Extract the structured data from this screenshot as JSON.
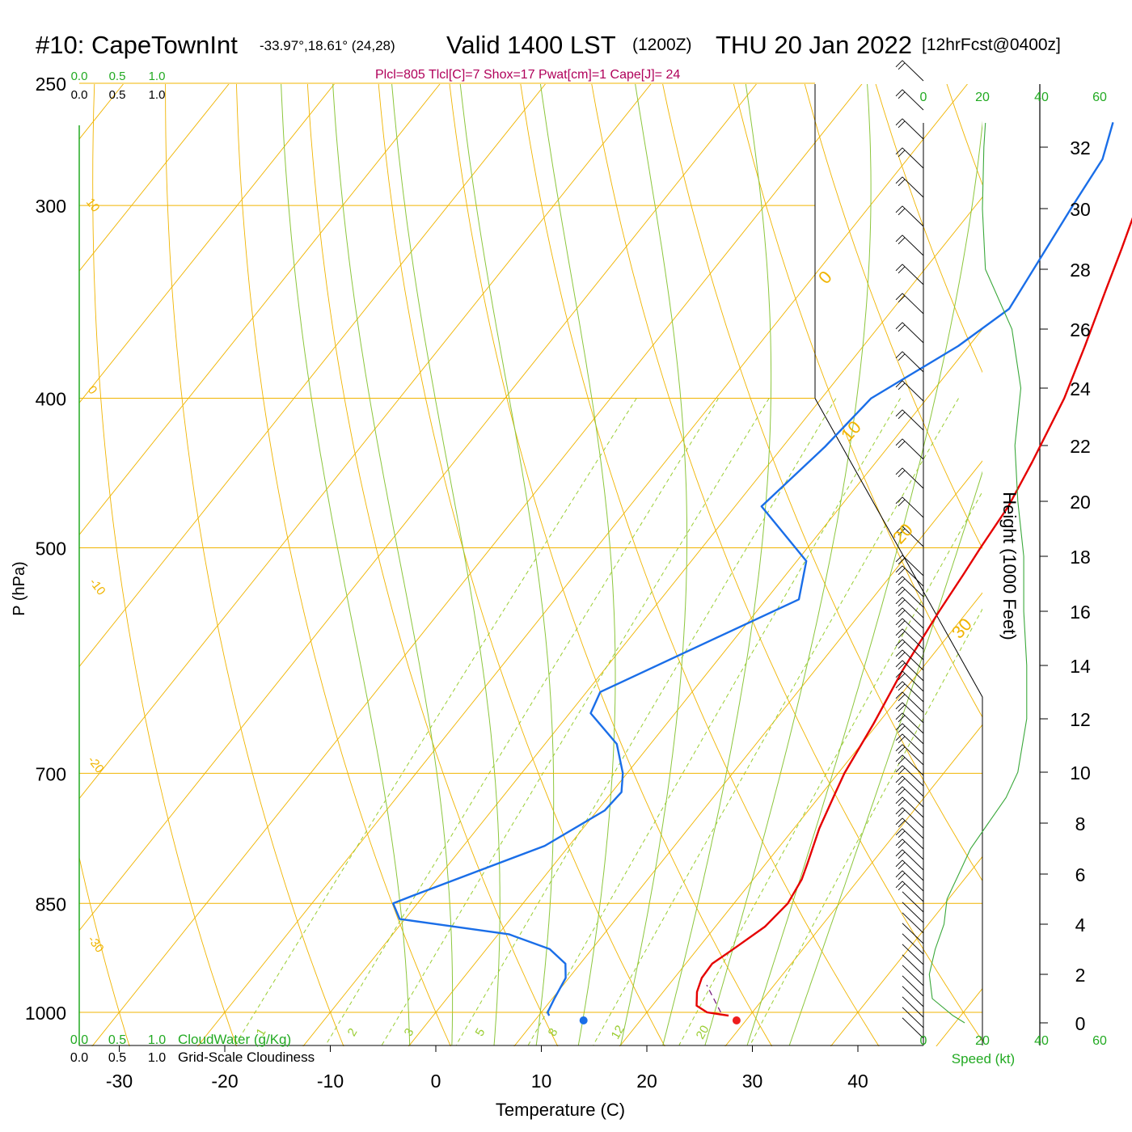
{
  "header": {
    "station": "#10: CapeTownInt",
    "coords": "-33.97°,18.61° (24,28)",
    "valid": "Valid 1400 LST",
    "utc": "(1200Z)",
    "date": "THU 20 Jan 2022",
    "forecast": "[12hrFcst@0400z]",
    "indices": "Plcl=805 Tlcl[C]=7 Shox=17 Pwat[cm]=1 Cape[J]= 24"
  },
  "colors": {
    "temperature": "#e50000",
    "dewpoint": "#1a6ee8",
    "isotherm": "#f0b400",
    "dry_adiabat": "#f0b400",
    "moist_adiabat": "#8cc63c",
    "mixing_ratio": "#9acd32",
    "green_text": "#22aa22",
    "parcel": "#7a2080"
  },
  "chart_data": {
    "type": "line",
    "xlabel": "Temperature (C)",
    "ylabel": "P (hPa)",
    "right_ylabel": "Height (1000 Feet)",
    "x_ticks": [
      -30,
      -20,
      -10,
      0,
      10,
      20,
      30,
      40
    ],
    "p_ticks": [
      250,
      300,
      400,
      500,
      700,
      850,
      1000
    ],
    "height_ticks": [
      0,
      2,
      4,
      6,
      8,
      10,
      12,
      14,
      16,
      18,
      20,
      22,
      24,
      26,
      28,
      30,
      32
    ],
    "skewed_isotherm_labels": [
      10,
      0,
      -10,
      -20,
      -30
    ],
    "right_isotherm_labels": [
      0,
      10,
      20,
      30
    ],
    "mixing_ratio_labels": [
      "1",
      "2",
      "3",
      "5",
      "8",
      "12",
      "20"
    ],
    "series": [
      {
        "name": "Temperature",
        "points": [
          [
            1005,
            28.0
          ],
          [
            1000,
            25.7
          ],
          [
            990,
            24.2
          ],
          [
            970,
            23.2
          ],
          [
            950,
            22.6
          ],
          [
            930,
            22.5
          ],
          [
            910,
            23.4
          ],
          [
            880,
            24.7
          ],
          [
            850,
            25.1
          ],
          [
            820,
            24.6
          ],
          [
            800,
            23.9
          ],
          [
            760,
            22.4
          ],
          [
            720,
            21.2
          ],
          [
            700,
            20.6
          ],
          [
            650,
            19.6
          ],
          [
            600,
            18.3
          ],
          [
            550,
            17.3
          ],
          [
            520,
            16.8
          ],
          [
            500,
            16.4
          ],
          [
            470,
            15.9
          ],
          [
            440,
            14.8
          ],
          [
            400,
            13.0
          ],
          [
            370,
            11.0
          ],
          [
            340,
            8.7
          ],
          [
            320,
            7.1
          ],
          [
            300,
            5.3
          ],
          [
            280,
            3.8
          ],
          [
            265,
            2.9
          ]
        ]
      },
      {
        "name": "Dewpoint",
        "points": [
          [
            1005,
            11.0
          ],
          [
            1000,
            10.6
          ],
          [
            980,
            10.2
          ],
          [
            950,
            9.7
          ],
          [
            930,
            8.6
          ],
          [
            910,
            6.0
          ],
          [
            890,
            1.0
          ],
          [
            870,
            -10.5
          ],
          [
            850,
            -12.3
          ],
          [
            840,
            -11.0
          ],
          [
            780,
            -2.3
          ],
          [
            740,
            0.7
          ],
          [
            720,
            0.9
          ],
          [
            700,
            -0.4
          ],
          [
            670,
            -3.2
          ],
          [
            640,
            -8.0
          ],
          [
            620,
            -8.7
          ],
          [
            540,
            3.1
          ],
          [
            510,
            0.9
          ],
          [
            470,
            -7.5
          ],
          [
            430,
            -6.0
          ],
          [
            400,
            -5.3
          ],
          [
            370,
            -1.0
          ],
          [
            350,
            1.0
          ],
          [
            300,
            -0.8
          ],
          [
            280,
            -1.5
          ],
          [
            265,
            -3.3
          ]
        ]
      },
      {
        "name": "Parcel",
        "points": [
          [
            1000,
            27.0
          ],
          [
            960,
            23.6
          ]
        ]
      }
    ],
    "surface_temperature": 28.5,
    "surface_dewpoint": 14.0,
    "wind_speed_axis": {
      "ticks": [
        0,
        20,
        40,
        60
      ],
      "label": "Speed (kt)"
    },
    "wind_speed_profile": [
      [
        0,
        14
      ],
      [
        0.3,
        10
      ],
      [
        1,
        3
      ],
      [
        2,
        2
      ],
      [
        3,
        4
      ],
      [
        4,
        7
      ],
      [
        5,
        8
      ],
      [
        6,
        12
      ],
      [
        7,
        16
      ],
      [
        8,
        22
      ],
      [
        9,
        28
      ],
      [
        10,
        32
      ],
      [
        12,
        35
      ],
      [
        14,
        35
      ],
      [
        16,
        34
      ],
      [
        18,
        34
      ],
      [
        20,
        32
      ],
      [
        22,
        31
      ],
      [
        24,
        33
      ],
      [
        26,
        30
      ],
      [
        28,
        21
      ],
      [
        30,
        20
      ],
      [
        32,
        20.5
      ],
      [
        33,
        21
      ]
    ],
    "cloud_scales": {
      "top_green": [
        "0.0",
        "0.5",
        "1.0"
      ],
      "top_black": [
        "0.0",
        "0.5",
        "1.0"
      ],
      "bottom_green": [
        "0.0",
        "0.5",
        "1.0"
      ],
      "bottom_green_label": "CloudWater (g/Kg)",
      "bottom_black": [
        "0.0",
        "0.5",
        "1.0"
      ],
      "bottom_black_label": "Grid-Scale Cloudiness"
    }
  }
}
